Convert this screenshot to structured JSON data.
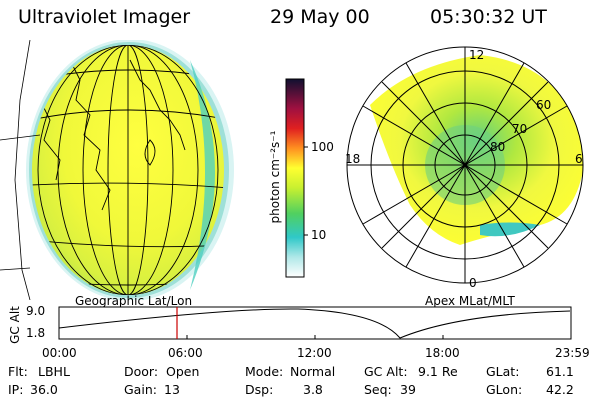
{
  "header": {
    "instrument": "Ultraviolet Imager",
    "date": "29 May 00",
    "time": "05:30:32 UT"
  },
  "panels": {
    "left_label": "Geographic Lat/Lon",
    "right_label": "Apex MLat/MLT"
  },
  "colorbar": {
    "label": "photon cm⁻²s⁻¹",
    "ticks": [
      "100",
      "10"
    ],
    "scale": "log"
  },
  "polar_plot": {
    "mlt_labels": [
      "12",
      "18",
      "6",
      "0"
    ],
    "mlat_labels": [
      "60",
      "70",
      "80"
    ]
  },
  "timeline": {
    "ylabel": "GC Alt",
    "yticks": [
      "9.0",
      "1.8"
    ],
    "xticks": [
      "00:00",
      "06:00",
      "12:00",
      "18:00",
      "23:59"
    ],
    "marker_time": "05:30:32",
    "marker_color": "#cc0000"
  },
  "info": {
    "row1": [
      {
        "label": "Flt:",
        "value": "LBHL"
      },
      {
        "label": "Door:",
        "value": "Open"
      },
      {
        "label": "Mode:",
        "value": "Normal"
      },
      {
        "label": "GC Alt:",
        "value": "9.1 Re"
      },
      {
        "label": "GLat:",
        "value": "61.1"
      }
    ],
    "row2": [
      {
        "label": "IP:",
        "value": "36.0"
      },
      {
        "label": "Gain:",
        "value": "13"
      },
      {
        "label": "Dsp:",
        "value": "3.8"
      },
      {
        "label": "Seq:",
        "value": "39"
      },
      {
        "label": "GLon:",
        "value": "42.2"
      }
    ]
  }
}
